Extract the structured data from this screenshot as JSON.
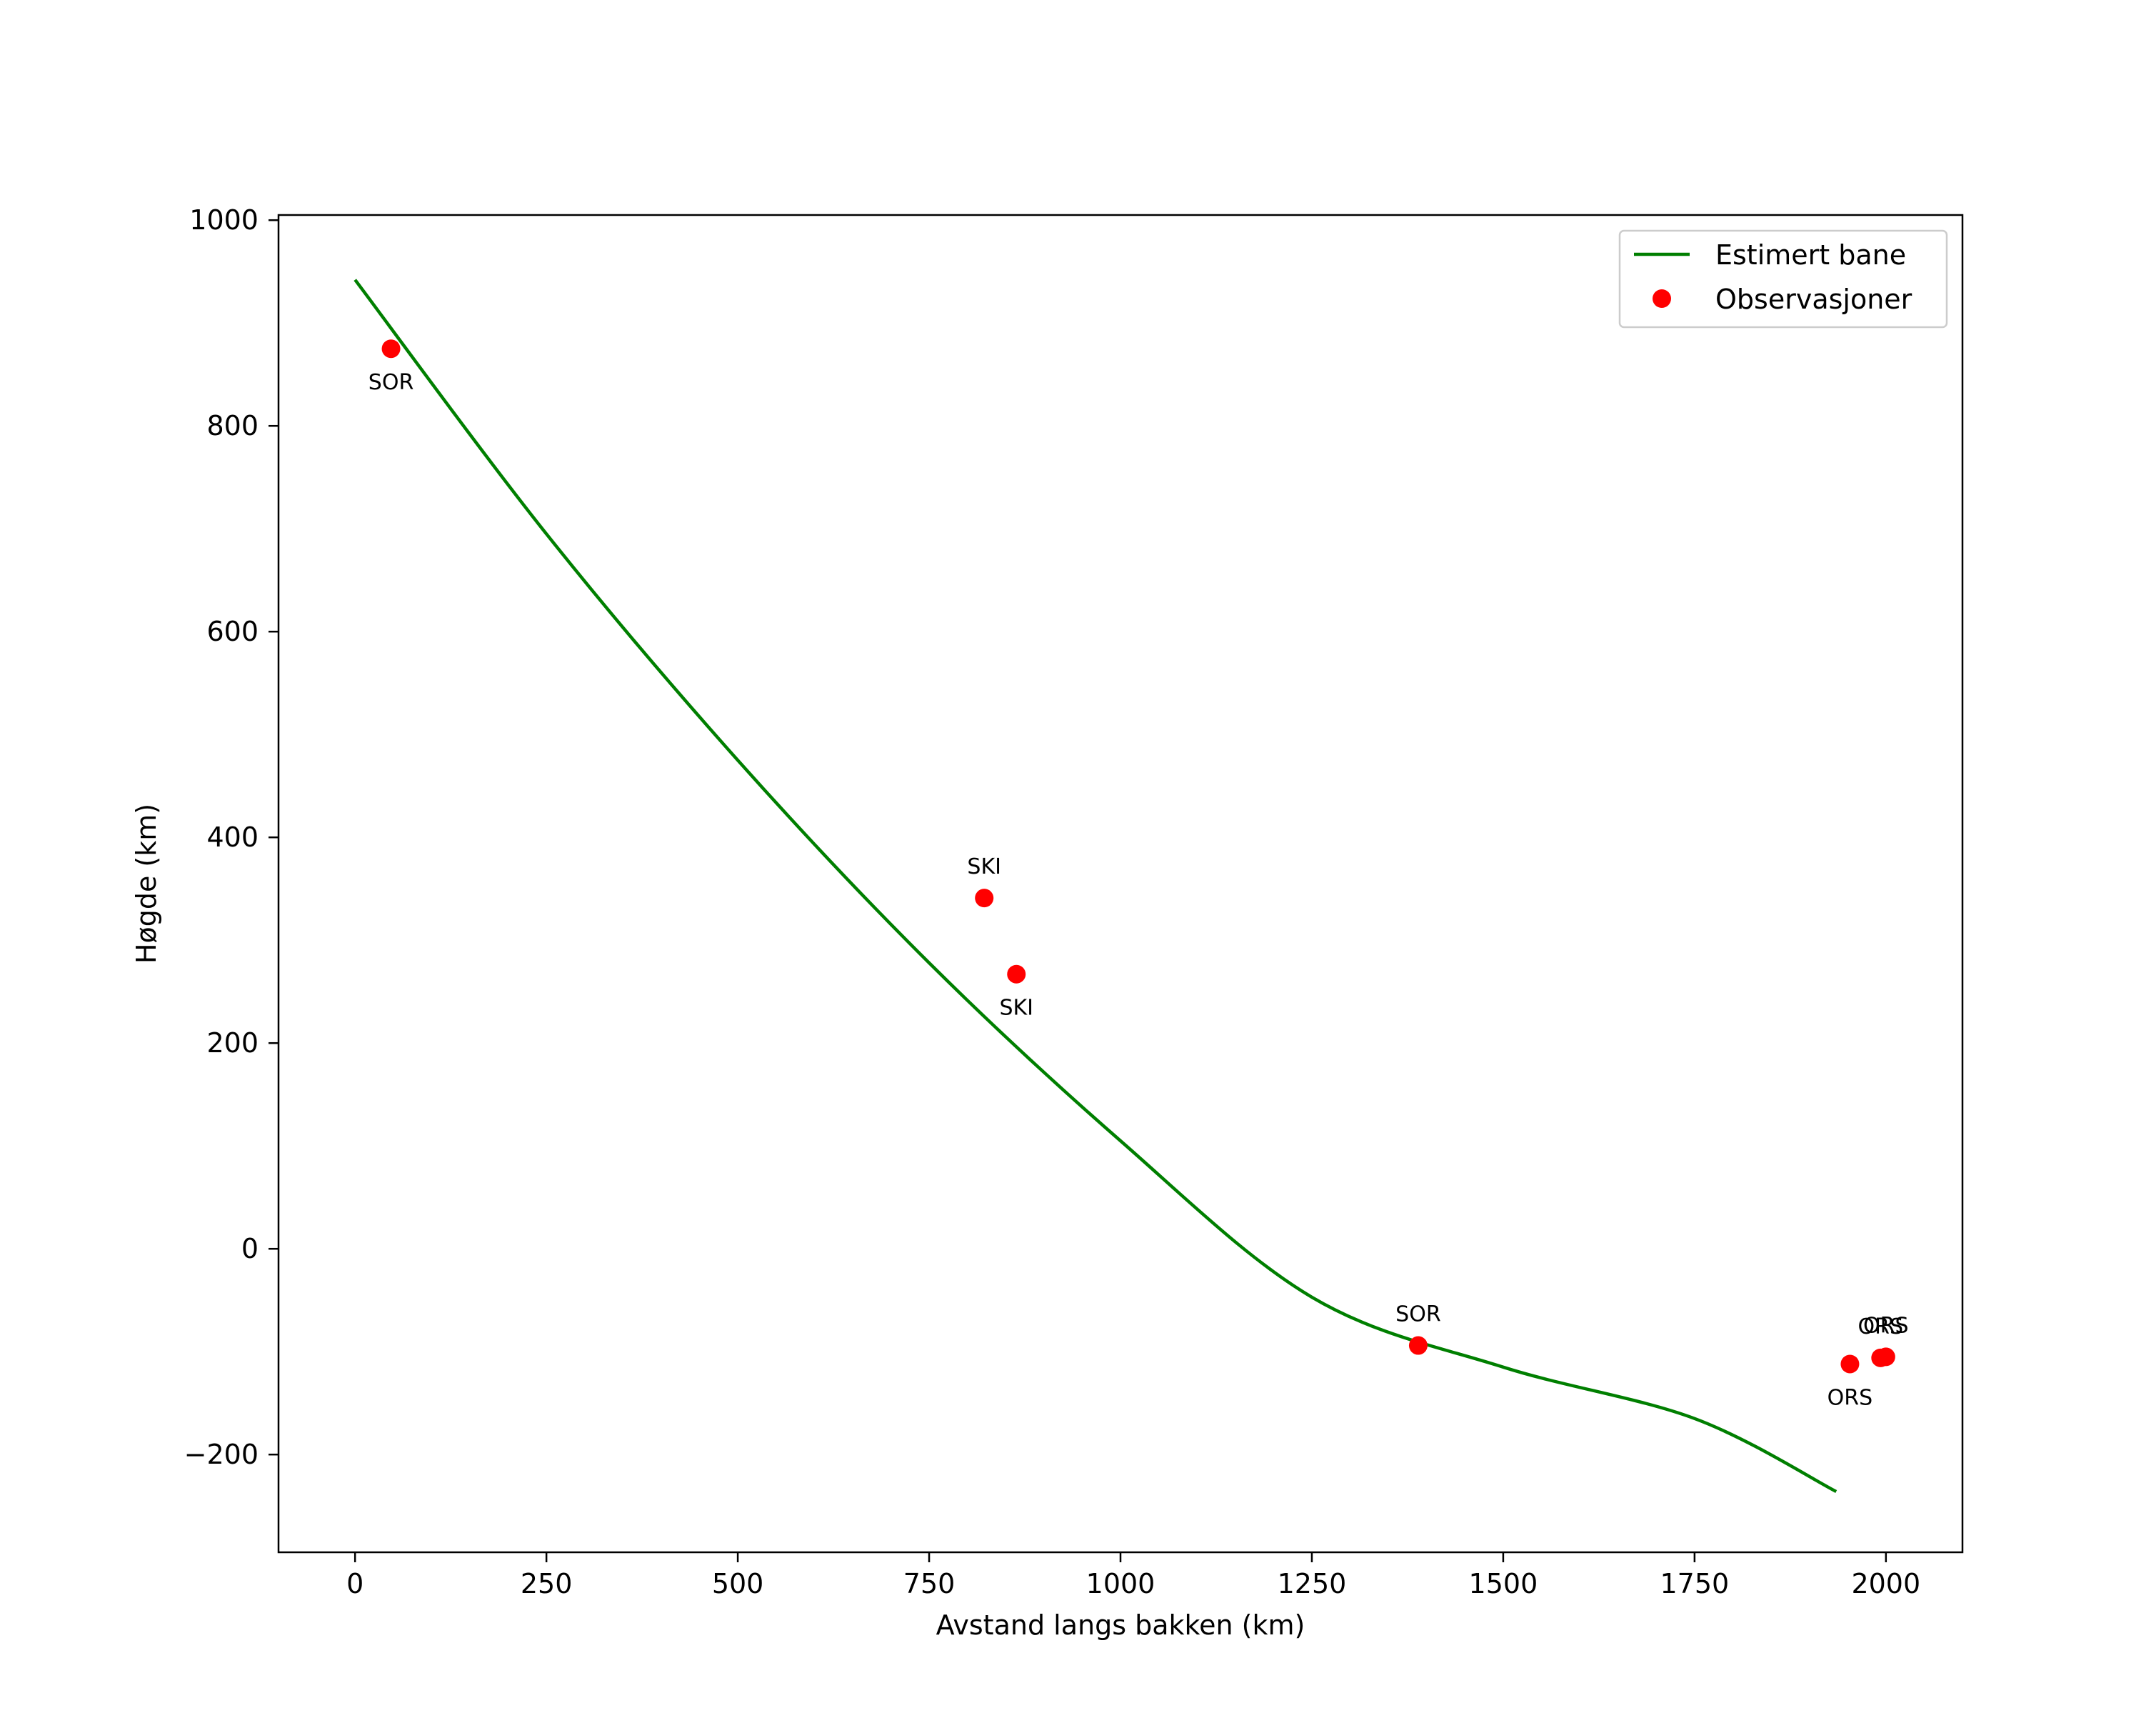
{
  "chart_data": {
    "type": "line",
    "title": "",
    "xlabel": "Avstand langs bakken (km)",
    "ylabel": "Høgde (km)",
    "xlim": [
      -100,
      2100
    ],
    "ylim": [
      -295,
      1005
    ],
    "xticks": [
      0,
      250,
      500,
      750,
      1000,
      1250,
      1500,
      1750,
      2000
    ],
    "yticks": [
      -200,
      0,
      200,
      400,
      600,
      800,
      1000
    ],
    "xtick_labels": [
      "0",
      "250",
      "500",
      "750",
      "1000",
      "1250",
      "1500",
      "1750",
      "2000"
    ],
    "ytick_labels": [
      "−200",
      "0",
      "200",
      "400",
      "600",
      "800",
      "1000"
    ],
    "grid": false,
    "legend_position": "top-right",
    "colors": {
      "line": "#007f00",
      "points": "#ff0000",
      "axes": "#000000"
    },
    "series": [
      {
        "name": "Estimert bane",
        "kind": "line",
        "x": [
          0,
          250,
          500,
          750,
          1000,
          1250,
          1500,
          1750,
          1935
        ],
        "y": [
          942,
          695,
          475,
          278,
          105,
          -47,
          -115,
          -165,
          -236
        ]
      },
      {
        "name": "Observasjoner",
        "kind": "scatter",
        "points": [
          {
            "x": 47,
            "y": 875,
            "label": "SOR",
            "label_pos": "below"
          },
          {
            "x": 822,
            "y": 341,
            "label": "SKI",
            "label_pos": "above"
          },
          {
            "x": 864,
            "y": 267,
            "label": "SKI",
            "label_pos": "below"
          },
          {
            "x": 1389,
            "y": -94,
            "label": "SOR",
            "label_pos": "above"
          },
          {
            "x": 1953,
            "y": -112,
            "label": "ORS",
            "label_pos": "below"
          },
          {
            "x": 1993,
            "y": -106,
            "label": "ORS",
            "label_pos": "above"
          },
          {
            "x": 2000,
            "y": -105,
            "label": "ORS",
            "label_pos": "above"
          }
        ]
      }
    ]
  }
}
